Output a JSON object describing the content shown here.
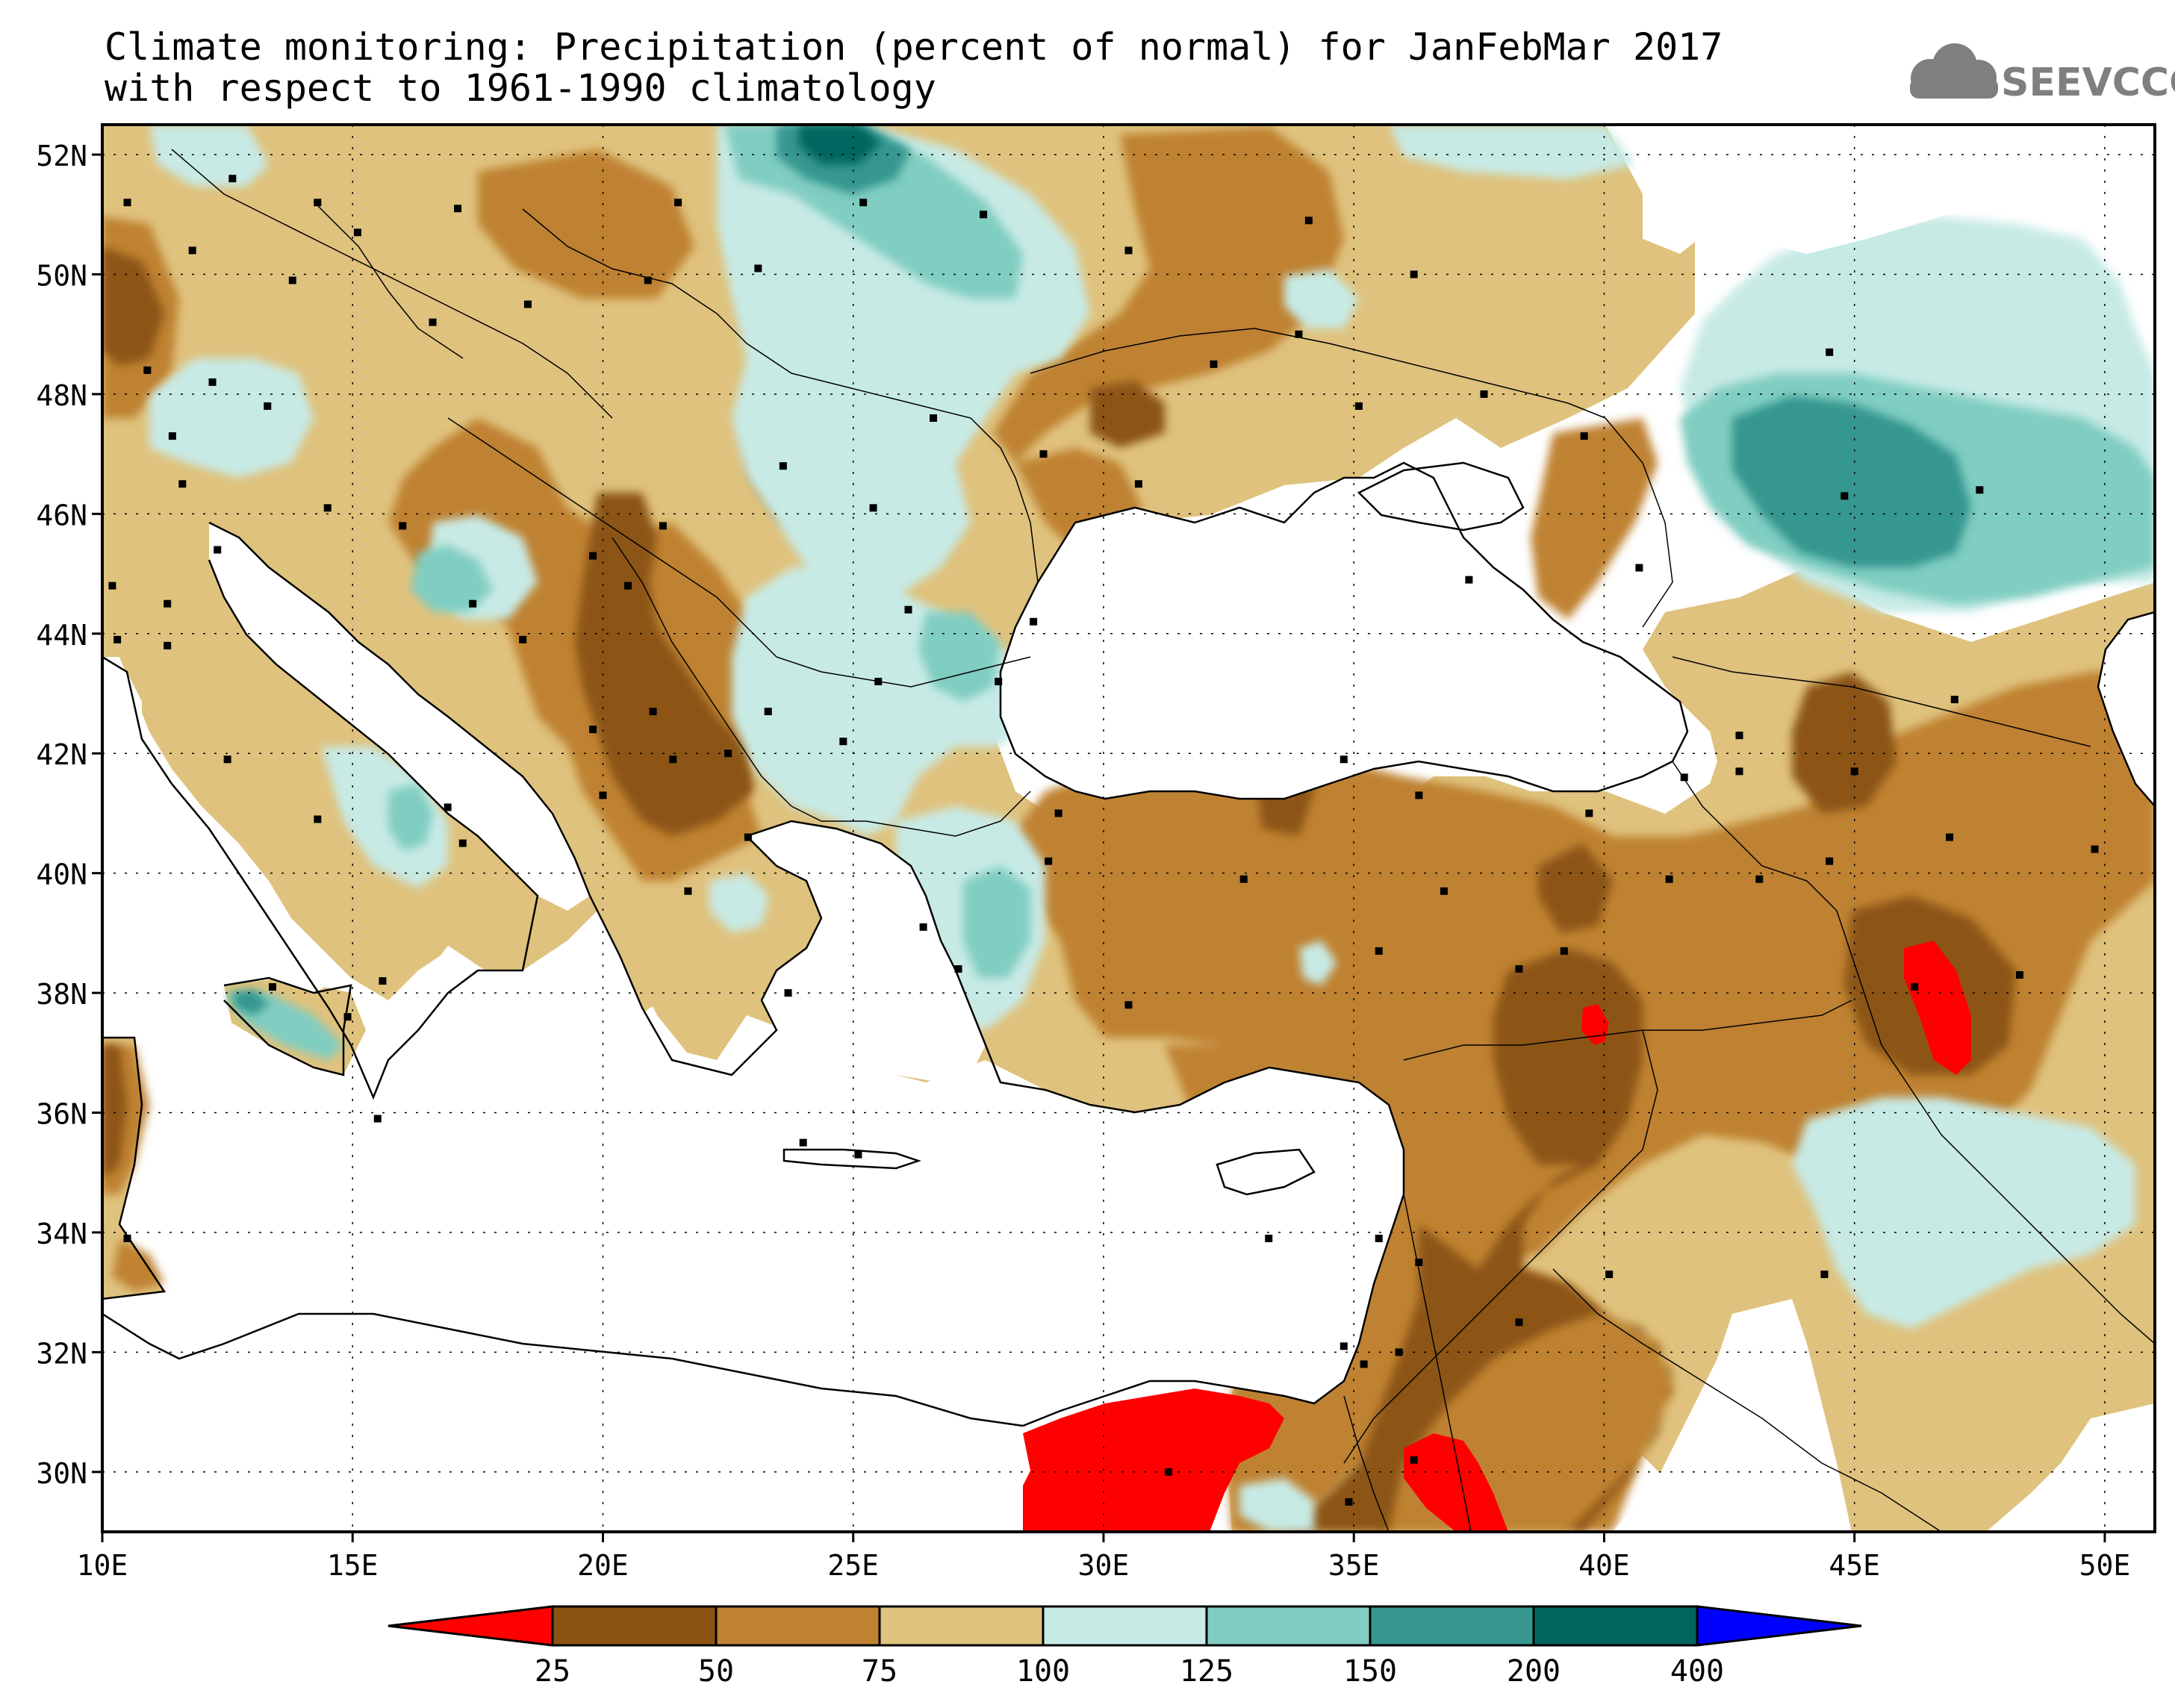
{
  "title_line1": "Climate monitoring: Precipitation (percent of normal) for JanFebMar 2017",
  "title_line2": "with respect to 1961-1990 climatology",
  "logo_text": "SEEVCCC",
  "lat_labels": [
    "52N",
    "50N",
    "48N",
    "46N",
    "44N",
    "42N",
    "40N",
    "38N",
    "36N",
    "34N",
    "32N",
    "30N"
  ],
  "lon_labels": [
    "10E",
    "15E",
    "20E",
    "25E",
    "30E",
    "35E",
    "40E",
    "45E",
    "50E"
  ],
  "legend": {
    "thresholds": [
      "25",
      "50",
      "75",
      "100",
      "125",
      "150",
      "200",
      "400"
    ],
    "colors": [
      "#ff0000",
      "#8c5413",
      "#bf8233",
      "#dfc27d",
      "#c7eae5",
      "#80cdc1",
      "#35978f",
      "#01665e",
      "#0000ff"
    ]
  },
  "colors": {
    "land_very_dry": "#8c5413",
    "land_dry": "#bf8233",
    "land_below": "#dfc27d",
    "land_above": "#c7eae5",
    "land_wet": "#80cdc1",
    "land_very_wet": "#35978f",
    "land_extreme": "#01665e",
    "deficit_extreme": "#ff0000",
    "sea": "#ffffff",
    "border": "#000000"
  }
}
